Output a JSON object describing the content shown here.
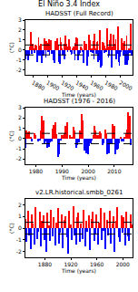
{
  "title": "El Niño 3.4 Index",
  "chart_data": [
    {
      "type": "bar",
      "title": "HADSST (Full Record)",
      "x_label": "Time (years)",
      "y_label": "(°C)",
      "x": [
        1870,
        1871,
        1872,
        1873,
        1874,
        1875,
        1876,
        1877,
        1878,
        1879,
        1880,
        1881,
        1882,
        1883,
        1884,
        1885,
        1886,
        1887,
        1888,
        1889,
        1890,
        1891,
        1892,
        1893,
        1894,
        1895,
        1896,
        1897,
        1898,
        1899,
        1900,
        1901,
        1902,
        1903,
        1904,
        1905,
        1906,
        1907,
        1908,
        1909,
        1910,
        1911,
        1912,
        1913,
        1914,
        1915,
        1916,
        1917,
        1918,
        1919,
        1920,
        1921,
        1922,
        1923,
        1924,
        1925,
        1926,
        1927,
        1928,
        1929,
        1930,
        1931,
        1932,
        1933,
        1934,
        1935,
        1936,
        1937,
        1938,
        1939,
        1940,
        1941,
        1942,
        1943,
        1944,
        1945,
        1946,
        1947,
        1948,
        1949,
        1950,
        1951,
        1952,
        1953,
        1954,
        1955,
        1956,
        1957,
        1958,
        1959,
        1960,
        1961,
        1962,
        1963,
        1964,
        1965,
        1966,
        1967,
        1968,
        1969,
        1970,
        1971,
        1972,
        1973,
        1974,
        1975,
        1976,
        1977,
        1978,
        1979,
        1980,
        1981,
        1982,
        1983,
        1984,
        1985,
        1986,
        1987,
        1988,
        1989,
        1990,
        1991,
        1992,
        1993,
        1994,
        1995,
        1996,
        1997,
        1998,
        1999,
        2000,
        2001,
        2002,
        2003,
        2004,
        2005,
        2006,
        2007,
        2008,
        2009,
        2010,
        2011,
        2012,
        2013,
        2014,
        2015,
        2016
      ],
      "series": [
        {
          "color": "red",
          "values": [
            null,
            null,
            null,
            null,
            null,
            null,
            0.3,
            1.8,
            1.2,
            null,
            0.6,
            0.2,
            null,
            null,
            0.5,
            0.4,
            null,
            null,
            1.3,
            0.4,
            null,
            0.6,
            null,
            null,
            null,
            null,
            1.2,
            0.3,
            null,
            0.9,
            0.7,
            null,
            1.1,
            null,
            0.4,
            1.0,
            null,
            null,
            null,
            null,
            null,
            0.9,
            0.5,
            0.2,
            1.2,
            0.5,
            null,
            null,
            1.3,
            0.8,
            0.2,
            null,
            null,
            0.6,
            null,
            1.4,
            0.6,
            0.3,
            null,
            0.1,
            1.1,
            0.3,
            null,
            null,
            null,
            0.1,
            0.3,
            null,
            null,
            0.7,
            1.3,
            1.2,
            null,
            null,
            null,
            null,
            0.3,
            0.2,
            null,
            null,
            null,
            0.9,
            0.2,
            0.6,
            null,
            null,
            null,
            1.5,
            1.0,
            0.1,
            null,
            0.1,
            null,
            0.9,
            null,
            1.6,
            0.2,
            null,
            0.8,
            0.9,
            null,
            null,
            2.0,
            null,
            null,
            null,
            0.8,
            0.7,
            null,
            0.4,
            0.2,
            null,
            2.2,
            0.3,
            null,
            null,
            1.0,
            1.6,
            null,
            null,
            0.3,
            1.5,
            0.6,
            0.2,
            1.1,
            null,
            null,
            2.4,
            null,
            null,
            null,
            null,
            1.2,
            0.2,
            0.7,
            null,
            0.9,
            null,
            null,
            1.4,
            null,
            null,
            0.1,
            null,
            0.5,
            2.6,
            null
          ]
        },
        {
          "color": "blue",
          "values": [
            -0.9,
            -0.5,
            -0.6,
            -0.7,
            -1.0,
            -0.6,
            null,
            null,
            null,
            -0.4,
            null,
            null,
            -0.3,
            -0.2,
            null,
            null,
            -1.2,
            -0.6,
            null,
            null,
            -0.6,
            null,
            -1.3,
            -1.0,
            -0.6,
            -0.5,
            null,
            null,
            -0.8,
            null,
            null,
            -0.2,
            null,
            -0.5,
            null,
            null,
            -0.4,
            -0.3,
            -0.8,
            -1.0,
            -1.3,
            null,
            null,
            null,
            null,
            null,
            -1.2,
            -1.4,
            null,
            null,
            null,
            -0.5,
            -0.4,
            null,
            -0.9,
            null,
            null,
            null,
            -0.2,
            null,
            null,
            null,
            -0.2,
            -0.5,
            -0.4,
            null,
            null,
            -0.4,
            -1.0,
            null,
            null,
            null,
            -1.0,
            -0.6,
            -0.5,
            -0.3,
            null,
            null,
            -0.2,
            -1.0,
            -1.3,
            null,
            null,
            null,
            -0.9,
            -1.6,
            -0.7,
            null,
            null,
            null,
            -0.2,
            null,
            -0.3,
            null,
            -0.9,
            null,
            null,
            -0.4,
            null,
            null,
            -1.2,
            -1.0,
            null,
            -1.8,
            -0.8,
            -1.6,
            null,
            null,
            -0.3,
            null,
            null,
            -0.2,
            null,
            null,
            -0.8,
            -0.6,
            null,
            null,
            -1.8,
            -0.3,
            null,
            null,
            null,
            null,
            null,
            -0.9,
            -0.4,
            null,
            -1.2,
            -1.6,
            -0.7,
            -0.2,
            null,
            null,
            null,
            -0.6,
            null,
            -1.5,
            -0.5,
            null,
            -1.5,
            -1.0,
            null,
            -0.3,
            null,
            null,
            -0.6
          ]
        }
      ],
      "xlim": [
        1870,
        2017
      ],
      "xticks": [
        1880,
        1900,
        1920,
        1940,
        1960,
        1980,
        2000
      ],
      "ylim": [
        -2.5,
        3
      ],
      "yticks": [
        -2,
        -1,
        0,
        1,
        2,
        3
      ],
      "thresholds": [
        -0.5,
        0.5
      ],
      "line_style": "dashed",
      "grid": false
    },
    {
      "type": "bar",
      "title": "HADSST (1976 - 2016)",
      "x_label": "Time (years)",
      "y_label": "(°C)",
      "x": [
        1976,
        1976.5,
        1977,
        1977.5,
        1978,
        1978.5,
        1979,
        1979.5,
        1980,
        1980.5,
        1981,
        1981.5,
        1982,
        1982.5,
        1983,
        1983.5,
        1984,
        1984.5,
        1985,
        1985.5,
        1986,
        1986.5,
        1987,
        1987.5,
        1988,
        1988.5,
        1989,
        1989.5,
        1990,
        1990.5,
        1991,
        1991.5,
        1992,
        1992.5,
        1993,
        1993.5,
        1994,
        1994.5,
        1995,
        1995.5,
        1996,
        1996.5,
        1997,
        1997.5,
        1998,
        1998.5,
        1999,
        1999.5,
        2000,
        2000.5,
        2001,
        2001.5,
        2002,
        2002.5,
        2003,
        2003.5,
        2004,
        2004.5,
        2005,
        2005.5,
        2006,
        2006.5,
        2007,
        2007.5,
        2008,
        2008.5,
        2009,
        2009.5,
        2010,
        2010.5,
        2011,
        2011.5,
        2012,
        2012.5,
        2013,
        2013.5,
        2014,
        2014.5,
        2015,
        2015.5,
        2016,
        2016.5
      ],
      "series": [
        {
          "color": "red",
          "values": [
            null,
            0.8,
            0.6,
            0.7,
            0.2,
            null,
            0.0,
            0.5,
            0.3,
            0.0,
            null,
            null,
            0.8,
            2.2,
            1.8,
            null,
            null,
            null,
            null,
            null,
            null,
            1.0,
            1.3,
            1.6,
            0.4,
            null,
            null,
            null,
            0.3,
            0.3,
            0.5,
            1.2,
            1.6,
            0.0,
            0.3,
            0.2,
            0.2,
            1.1,
            0.8,
            null,
            null,
            null,
            0.8,
            2.4,
            1.8,
            null,
            null,
            null,
            null,
            null,
            null,
            null,
            0.3,
            1.2,
            0.8,
            0.3,
            0.3,
            0.7,
            0.5,
            null,
            null,
            0.9,
            0.5,
            null,
            null,
            null,
            null,
            1.4,
            1.2,
            null,
            null,
            null,
            null,
            0.1,
            null,
            null,
            0.2,
            0.5,
            0.9,
            2.6,
            2.2,
            null
          ]
        },
        {
          "color": "blue",
          "values": [
            -0.9,
            null,
            null,
            null,
            null,
            -0.3,
            null,
            null,
            null,
            null,
            -0.3,
            -0.2,
            null,
            null,
            null,
            -0.5,
            -0.3,
            -0.9,
            -0.8,
            -0.4,
            -0.3,
            null,
            null,
            null,
            null,
            -1.8,
            -1.5,
            -0.2,
            null,
            null,
            null,
            null,
            null,
            null,
            null,
            null,
            null,
            null,
            null,
            -0.9,
            -0.6,
            -0.4,
            null,
            null,
            null,
            -1.2,
            -1.2,
            -1.4,
            -1.5,
            -0.7,
            -0.5,
            -0.2,
            null,
            null,
            null,
            null,
            null,
            null,
            null,
            -0.6,
            -0.5,
            null,
            null,
            -1.5,
            -1.4,
            -0.5,
            -0.5,
            null,
            null,
            -1.5,
            -1.1,
            -1.0,
            -0.5,
            null,
            -0.3,
            -0.3,
            null,
            null,
            null,
            null,
            null,
            -0.6
          ]
        }
      ],
      "xlim": [
        1976,
        2017
      ],
      "xticks": [
        1980,
        1990,
        2000,
        2010
      ],
      "ylim": [
        -2.5,
        3
      ],
      "yticks": [
        -2,
        -1,
        0,
        1,
        2,
        3
      ],
      "thresholds": [
        -0.5,
        0.5
      ],
      "line_style": "dashed",
      "grid": false
    },
    {
      "type": "bar",
      "title": "v2.LR.historical.smbb_0261",
      "x_label": "Time (years)",
      "y_label": "(°C)",
      "x": [
        1850,
        1852,
        1854,
        1856,
        1858,
        1860,
        1862,
        1864,
        1866,
        1868,
        1870,
        1872,
        1874,
        1876,
        1878,
        1880,
        1882,
        1884,
        1886,
        1888,
        1890,
        1892,
        1894,
        1896,
        1898,
        1900,
        1902,
        1904,
        1906,
        1908,
        1910,
        1912,
        1914,
        1916,
        1918,
        1920,
        1922,
        1924,
        1926,
        1928,
        1930,
        1932,
        1934,
        1936,
        1938,
        1940,
        1942,
        1944,
        1946,
        1948,
        1950,
        1952,
        1954,
        1956,
        1958,
        1960,
        1962,
        1964,
        1966,
        1968,
        1970,
        1972,
        1974,
        1976,
        1978,
        1980,
        1982,
        1984,
        1986,
        1988,
        1990,
        1992,
        1994,
        1996,
        1998,
        2000,
        2002,
        2004,
        2006,
        2008,
        2010,
        2012,
        2014
      ],
      "series": [
        {
          "color": "red",
          "values": [
            0.8,
            null,
            1.5,
            null,
            null,
            1.2,
            0.4,
            null,
            1.8,
            null,
            null,
            1.4,
            null,
            0.6,
            1.1,
            null,
            null,
            1.3,
            0.2,
            null,
            1.6,
            null,
            0.9,
            null,
            0.5,
            1.7,
            null,
            null,
            1.2,
            null,
            0.7,
            1.0,
            null,
            null,
            1.5,
            0.3,
            null,
            1.9,
            null,
            null,
            0.9,
            1.3,
            null,
            0.4,
            null,
            1.6,
            null,
            0.6,
            null,
            1.1,
            null,
            0.8,
            1.4,
            null,
            null,
            1.2,
            null,
            0.5,
            1.7,
            null,
            null,
            1.3,
            null,
            0.7,
            null,
            1.5,
            null,
            0.4,
            1.0,
            null,
            0.6,
            1.8,
            null,
            null,
            1.1,
            null,
            0.9,
            null,
            1.4,
            null,
            null,
            1.2,
            0.3
          ]
        },
        {
          "color": "blue",
          "values": [
            null,
            -1.2,
            null,
            -0.6,
            -1.8,
            null,
            null,
            -1.4,
            null,
            -0.9,
            -0.3,
            null,
            -1.6,
            null,
            null,
            -1.0,
            -2.0,
            null,
            null,
            -1.1,
            null,
            -0.7,
            null,
            -1.5,
            null,
            null,
            -1.3,
            -0.4,
            null,
            -1.7,
            null,
            null,
            -0.8,
            -2.2,
            null,
            null,
            -1.0,
            null,
            -0.6,
            -1.4,
            null,
            null,
            -1.2,
            null,
            -0.9,
            null,
            -1.6,
            null,
            -0.3,
            null,
            -1.9,
            null,
            null,
            -1.1,
            -0.5,
            null,
            -1.4,
            null,
            null,
            -1.0,
            -0.2,
            null,
            -1.8,
            null,
            -0.6,
            null,
            -1.3,
            null,
            null,
            -2.0,
            null,
            null,
            -0.8,
            -1.2,
            null,
            -0.4,
            null,
            -1.5,
            null,
            -0.7,
            -1.1,
            null,
            null
          ]
        }
      ],
      "xlim": [
        1850,
        2015
      ],
      "xticks": [
        1880,
        1920,
        1960,
        2000
      ],
      "ylim": [
        -2.5,
        2.5
      ],
      "yticks": [
        -2,
        -1,
        0,
        1,
        2
      ],
      "thresholds": [
        -0.5,
        0.5
      ],
      "line_style": "dashed",
      "grid": false
    }
  ]
}
